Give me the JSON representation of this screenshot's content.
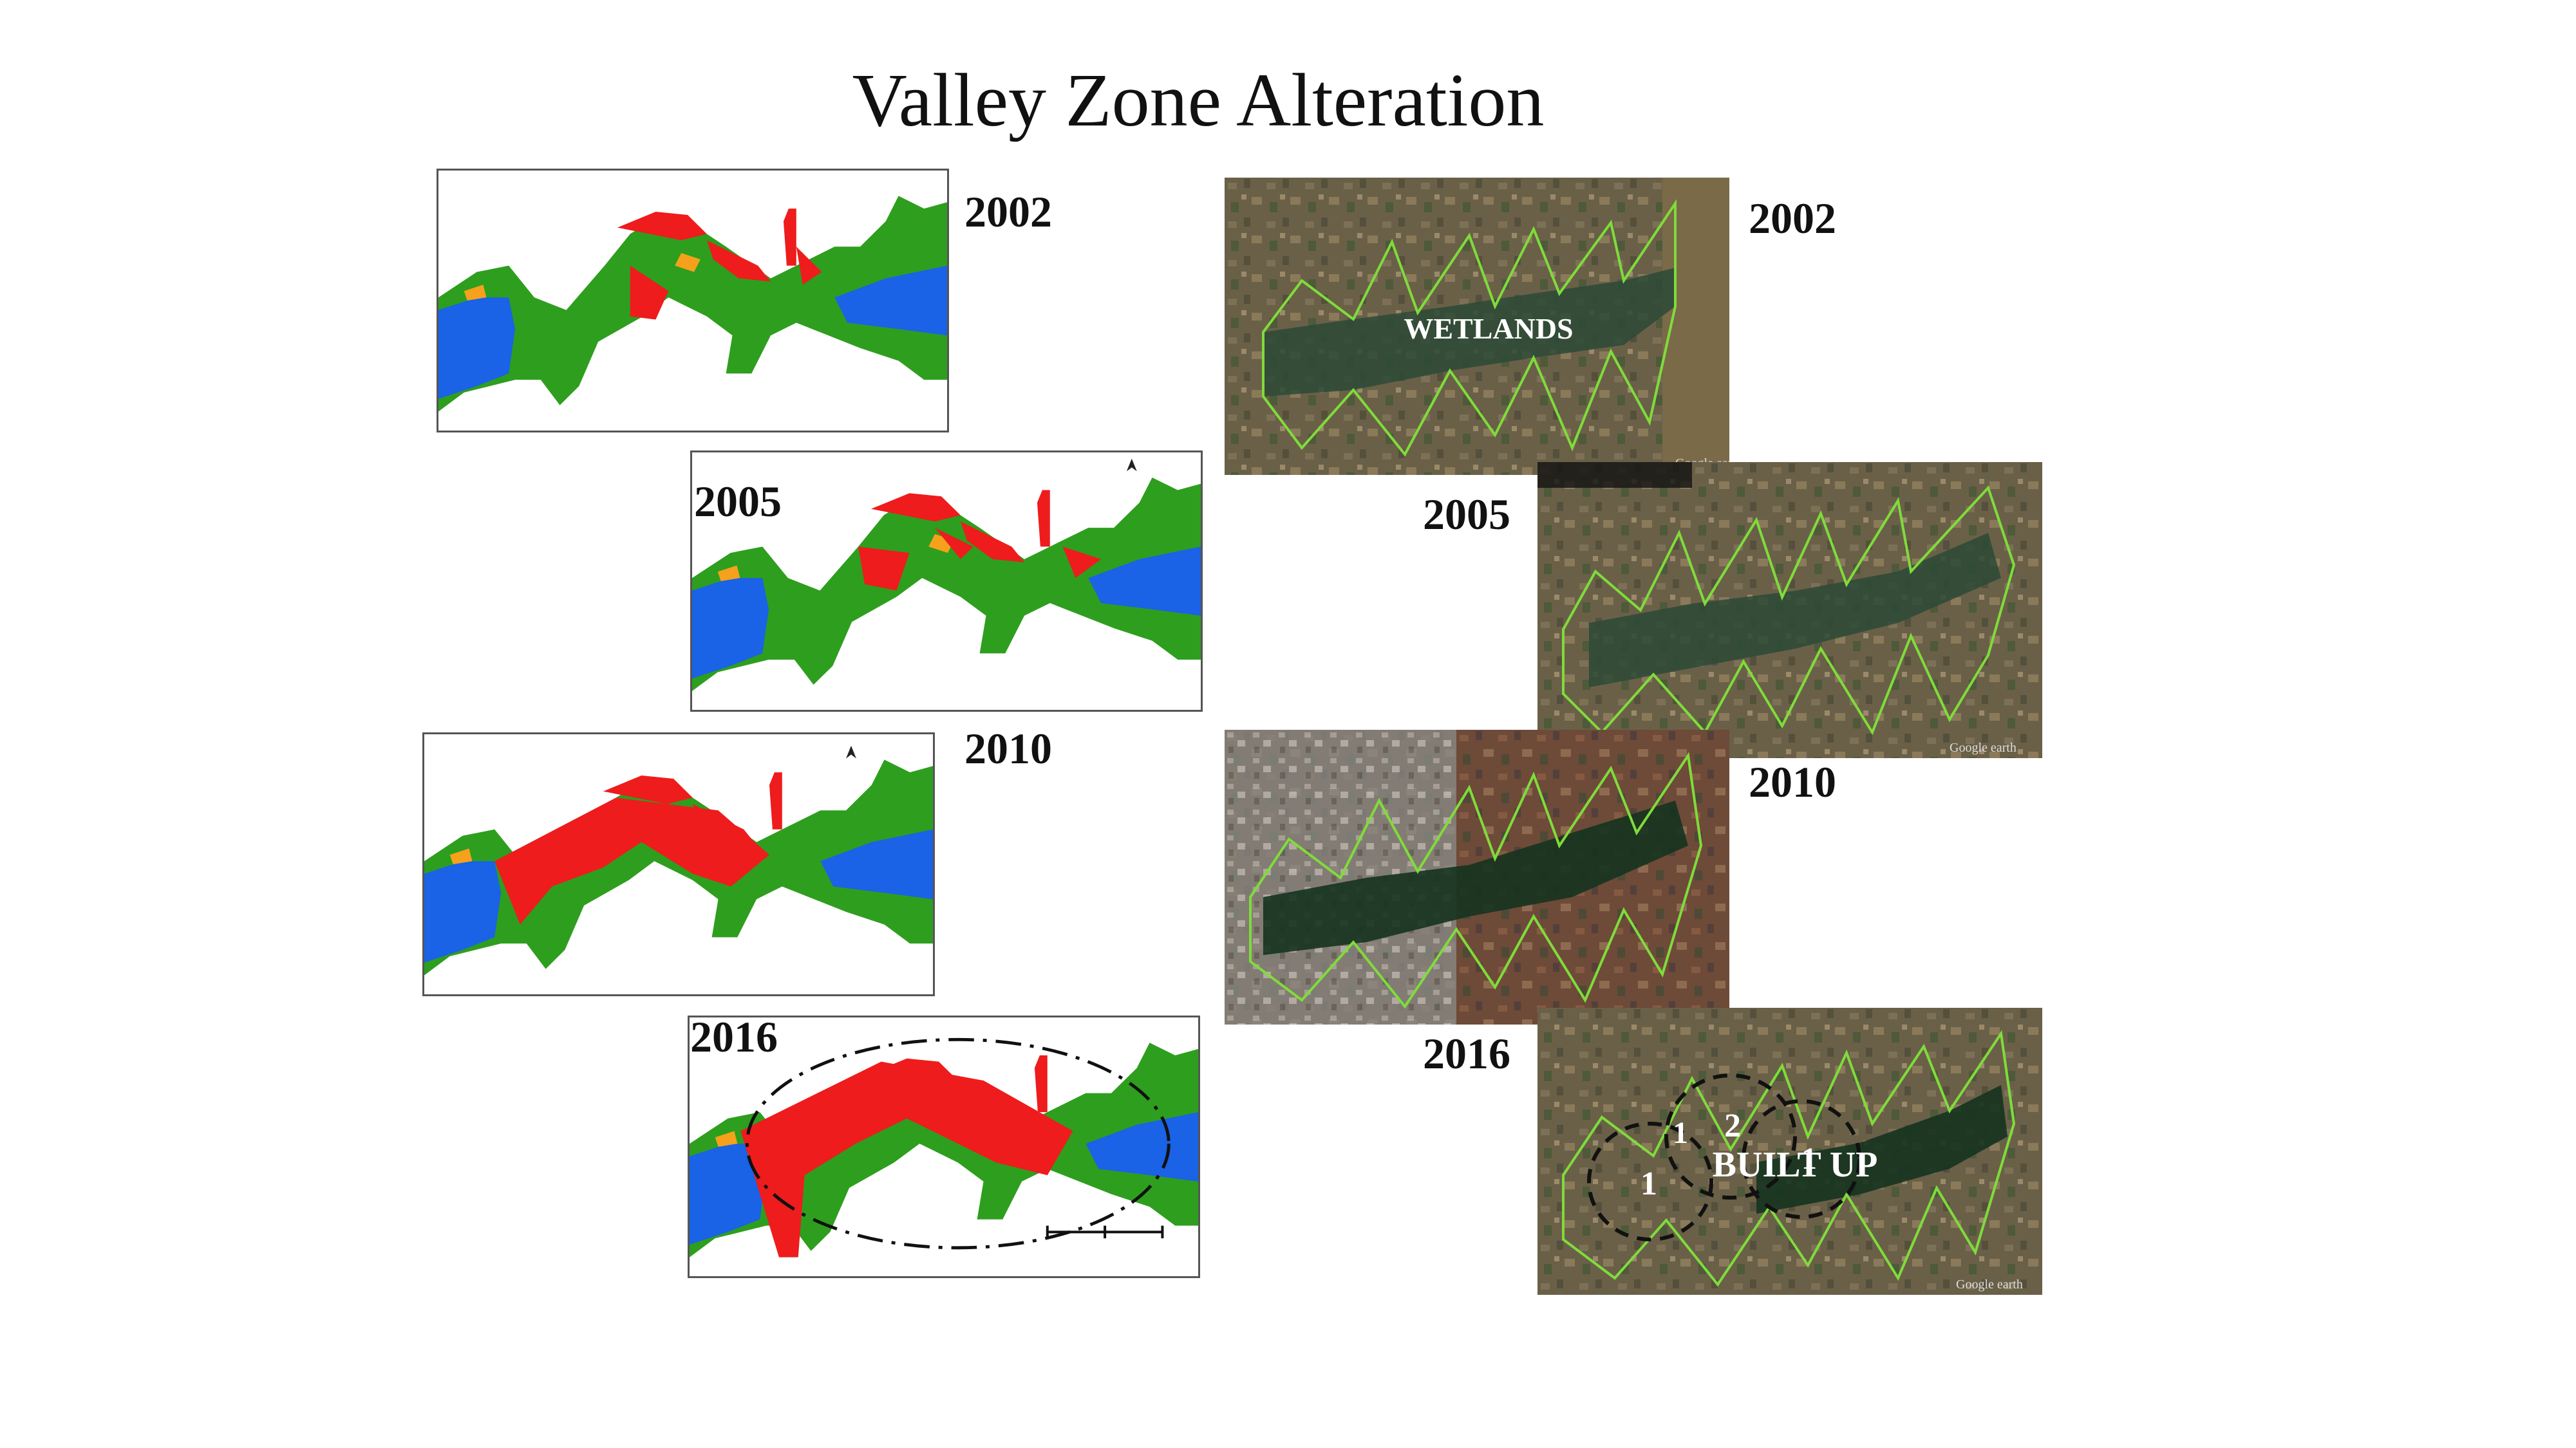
{
  "title": "Valley Zone Alteration",
  "years": [
    "2002",
    "2005",
    "2010",
    "2016"
  ],
  "satellite": {
    "wetlands_label": "WETLANDS",
    "builtup_label": "BUILT UP",
    "zone_numbers": [
      "1",
      "1",
      "2",
      "1"
    ],
    "watermark": "Google earth",
    "has_north_arrow_2005": true,
    "has_north_arrow_2010": true
  },
  "colors": {
    "water": "#1a62e6",
    "vegetation": "#2e9e1e",
    "builtup": "#ee1c1c",
    "other": "#f5a11c",
    "sat_ground": "#6a6048",
    "sat_water": "#2b4a36",
    "boundary": "#7fdc3a"
  }
}
